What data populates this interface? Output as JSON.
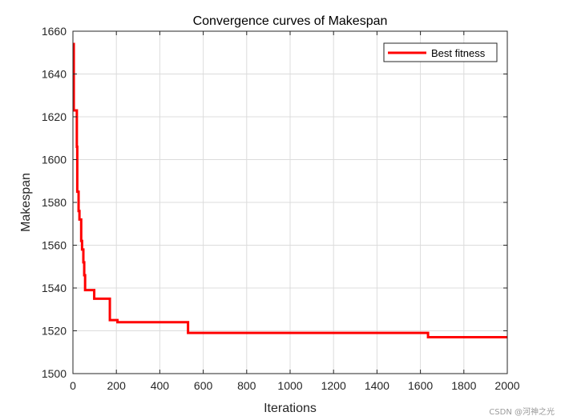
{
  "chart_data": {
    "type": "line",
    "title": "Convergence curves of Makespan",
    "xlabel": "Iterations",
    "ylabel": "Makespan",
    "xlim": [
      0,
      2000
    ],
    "ylim": [
      1500,
      1660
    ],
    "xticks": [
      0,
      200,
      400,
      600,
      800,
      1000,
      1200,
      1400,
      1600,
      1800,
      2000
    ],
    "yticks": [
      1500,
      1520,
      1540,
      1560,
      1580,
      1600,
      1620,
      1640,
      1660
    ],
    "grid": true,
    "legend": {
      "position": "top-right",
      "entries": [
        "Best fitness"
      ]
    },
    "series": [
      {
        "name": "Best fitness",
        "color": "#ff0000",
        "step": true,
        "points": [
          [
            1,
            1654
          ],
          [
            4,
            1623
          ],
          [
            16,
            1623
          ],
          [
            18,
            1606
          ],
          [
            20,
            1585
          ],
          [
            26,
            1576
          ],
          [
            30,
            1572
          ],
          [
            38,
            1562
          ],
          [
            42,
            1558
          ],
          [
            48,
            1552
          ],
          [
            52,
            1546
          ],
          [
            56,
            1539
          ],
          [
            98,
            1535
          ],
          [
            170,
            1525
          ],
          [
            205,
            1524
          ],
          [
            530,
            1519
          ],
          [
            1635,
            1517
          ],
          [
            2000,
            1517
          ]
        ]
      }
    ]
  },
  "watermark": "CSDN @河神之光"
}
